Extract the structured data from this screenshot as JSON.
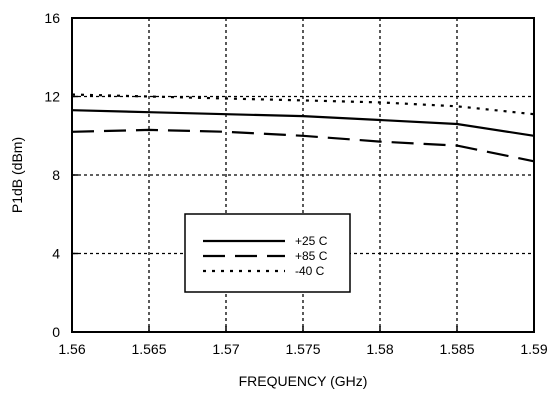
{
  "chart_data": {
    "type": "line",
    "xlabel": "FREQUENCY (GHz)",
    "ylabel": "P1dB (dBm)",
    "xlim": [
      1.56,
      1.59
    ],
    "ylim": [
      0,
      16
    ],
    "x_ticks": [
      1.56,
      1.565,
      1.57,
      1.575,
      1.58,
      1.585,
      1.59
    ],
    "x_tick_labels": [
      "1.56",
      "1.565",
      "1.57",
      "1.575",
      "1.58",
      "1.585",
      "1.59"
    ],
    "y_ticks": [
      0,
      4,
      8,
      12,
      16
    ],
    "y_tick_labels": [
      "0",
      "4",
      "8",
      "12",
      "16"
    ],
    "grid": true,
    "legend_position": "center-left",
    "series": [
      {
        "name": "+25 C",
        "line_style": "solid",
        "color": "#000000",
        "x": [
          1.56,
          1.565,
          1.57,
          1.575,
          1.58,
          1.585,
          1.59
        ],
        "y": [
          11.3,
          11.2,
          11.1,
          11.0,
          10.8,
          10.6,
          10.0
        ]
      },
      {
        "name": "+85 C",
        "line_style": "dashed",
        "color": "#000000",
        "x": [
          1.56,
          1.565,
          1.57,
          1.575,
          1.58,
          1.585,
          1.59
        ],
        "y": [
          10.2,
          10.3,
          10.2,
          10.0,
          9.7,
          9.5,
          8.7
        ]
      },
      {
        "name": "-40 C",
        "line_style": "dotted",
        "color": "#000000",
        "x": [
          1.56,
          1.565,
          1.57,
          1.575,
          1.58,
          1.585,
          1.59
        ],
        "y": [
          12.1,
          12.0,
          11.9,
          11.8,
          11.7,
          11.5,
          11.1
        ]
      }
    ]
  }
}
